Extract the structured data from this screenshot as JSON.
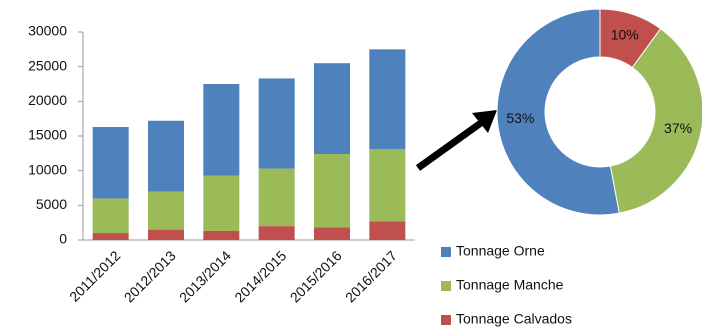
{
  "chart_data": [
    {
      "type": "bar",
      "stacked": true,
      "categories": [
        "2011/2012",
        "2012/2013",
        "2013/2014",
        "2014/2015",
        "2015/2016",
        "2016/2017"
      ],
      "series": [
        {
          "name": "Tonnage Calvados",
          "color": "#c0504d",
          "values": [
            1000,
            1500,
            1300,
            2000,
            1800,
            2700
          ]
        },
        {
          "name": "Tonnage Manche",
          "color": "#9bbb59",
          "values": [
            5000,
            5500,
            8000,
            8300,
            10600,
            10400
          ]
        },
        {
          "name": "Tonnage Orne",
          "color": "#4f81bd",
          "values": [
            10300,
            10200,
            13200,
            13000,
            13100,
            14400
          ]
        }
      ],
      "ylim": [
        0,
        30000
      ],
      "yticks": [
        0,
        5000,
        10000,
        15000,
        20000,
        25000,
        30000
      ],
      "grid": false,
      "legend": "right"
    },
    {
      "type": "donut",
      "values": [
        10,
        37,
        53
      ],
      "value_labels": [
        "10%",
        "37%",
        "53%"
      ],
      "colors": [
        "#c0504d",
        "#9bbb59",
        "#4f81bd"
      ]
    }
  ]
}
